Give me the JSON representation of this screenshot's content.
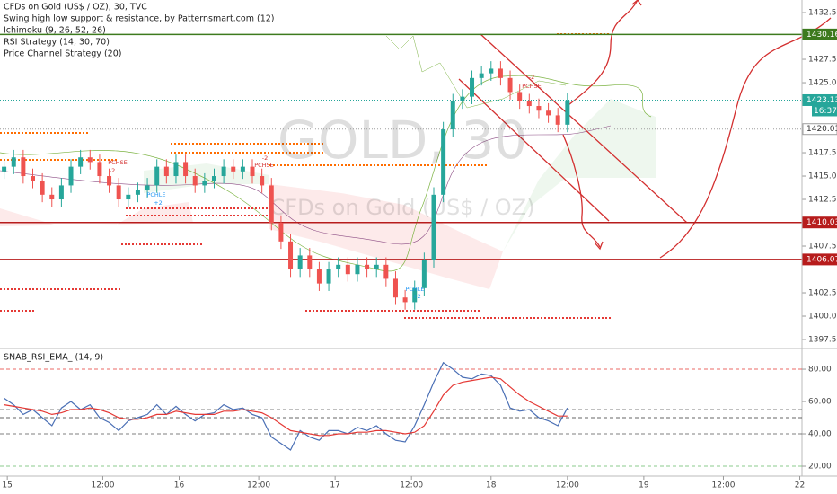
{
  "chart_data": [
    {
      "type": "candlestick",
      "title": "CFDs on Gold (US$ / OZ), 30, TVC",
      "indicators": [
        "Swing high low support & resistance, by Patternsmart.com (12)",
        "Ichimoku (9, 26, 52, 26)",
        "RSI Strategy (14, 30, 70)",
        "Price Channel Strategy (20)"
      ],
      "watermark": [
        "GOLD, 30",
        "CFDs on Gold (US$ / OZ)"
      ],
      "annotations": [
        "-2",
        "PCHSE",
        "PCHLE",
        "+2",
        "-2",
        "PCHSE",
        "PCHLE",
        "+2",
        "-2",
        "PCHSE"
      ],
      "up_color": "#26a69a",
      "down_color": "#ef5350",
      "x": [
        -1,
        2,
        5,
        8,
        11,
        14,
        17,
        20,
        23,
        26,
        29,
        32,
        35,
        38,
        41,
        44,
        47,
        50,
        53,
        56,
        59,
        62,
        65,
        68,
        71,
        74,
        77,
        80,
        83,
        86,
        89,
        92,
        95,
        98,
        101,
        104,
        107,
        110,
        113,
        116,
        119,
        122,
        125,
        128,
        131,
        134,
        137,
        140,
        143,
        146,
        149,
        152,
        155,
        158,
        161,
        164,
        167,
        170,
        173,
        176
      ],
      "open": [
        1415.5,
        1416,
        1417,
        1415,
        1414.5,
        1413,
        1412.5,
        1414,
        1416,
        1417,
        1416.5,
        1415,
        1414,
        1412.5,
        1413,
        1413.5,
        1414,
        1416,
        1415,
        1416.5,
        1415,
        1414,
        1414.5,
        1415,
        1416,
        1415.5,
        1416,
        1415,
        1414,
        1410,
        1408,
        1405,
        1406.5,
        1405,
        1403.5,
        1405,
        1405.5,
        1404.5,
        1405.5,
        1405,
        1405.5,
        1404,
        1402,
        1401.5,
        1403,
        1406,
        1413,
        1420,
        1423,
        1423.5,
        1425.5,
        1426,
        1426.5,
        1425.5,
        1424,
        1423,
        1422.5,
        1422,
        1421.5,
        1420.5
      ],
      "high": [
        1416.8,
        1417.8,
        1417.8,
        1415.8,
        1415.3,
        1413.8,
        1414.8,
        1416.8,
        1417.8,
        1417.8,
        1417.3,
        1415.8,
        1414.8,
        1413.8,
        1414.3,
        1414.8,
        1416.8,
        1416.8,
        1417.3,
        1417.3,
        1415.8,
        1415.3,
        1415.8,
        1416.8,
        1416.8,
        1416.8,
        1416.8,
        1415.8,
        1414.8,
        1410.8,
        1408.8,
        1407.3,
        1407.3,
        1405.8,
        1405.8,
        1406.3,
        1406.3,
        1406.3,
        1406.3,
        1406.3,
        1406.3,
        1404.8,
        1402.8,
        1403.8,
        1406.8,
        1413.8,
        1420.8,
        1423.8,
        1424.3,
        1426.3,
        1426.8,
        1427.3,
        1427.3,
        1426.3,
        1424.8,
        1423.8,
        1423.3,
        1422.8,
        1422.3,
        1423.9
      ],
      "low": [
        1414.7,
        1415.2,
        1414.2,
        1413.7,
        1412.2,
        1411.7,
        1411.7,
        1413.2,
        1415.2,
        1415.7,
        1414.2,
        1413.2,
        1411.7,
        1411.7,
        1412.2,
        1412.7,
        1413.2,
        1414.2,
        1414.2,
        1414.2,
        1413.2,
        1413.2,
        1413.7,
        1414.2,
        1414.7,
        1414.7,
        1414.2,
        1413.2,
        1409.2,
        1407.2,
        1404.2,
        1404.2,
        1404.2,
        1402.7,
        1402.7,
        1404.2,
        1403.7,
        1403.7,
        1404.2,
        1404.2,
        1403.2,
        1401.2,
        1400.7,
        1400.7,
        1402.2,
        1405.2,
        1412.2,
        1419.2,
        1422.2,
        1422.7,
        1424.7,
        1425.2,
        1424.7,
        1423.2,
        1422.2,
        1421.7,
        1421.2,
        1420.7,
        1419.7,
        1419.7
      ],
      "close": [
        1416,
        1417,
        1415,
        1414.5,
        1413,
        1412.5,
        1414,
        1416,
        1417,
        1416.5,
        1415,
        1414,
        1412.5,
        1413,
        1413.5,
        1414,
        1416,
        1415,
        1416.5,
        1415,
        1414,
        1414.5,
        1415,
        1416,
        1415.5,
        1416,
        1415,
        1414,
        1410,
        1408,
        1405,
        1406.5,
        1405,
        1403.5,
        1405,
        1405.5,
        1404.5,
        1405.5,
        1405,
        1405.5,
        1404,
        1402,
        1401.5,
        1403,
        1406,
        1413,
        1420,
        1423,
        1423.5,
        1425.5,
        1426,
        1426.5,
        1425.5,
        1424,
        1423,
        1422.5,
        1422,
        1421.5,
        1420.5,
        1423.1
      ],
      "xlim": [
        -2.3,
        249.7
      ],
      "ylim": [
        1396.54,
        1433.85
      ],
      "yticks": [
        {
          "value": 1432.5,
          "label": "1432.50"
        },
        {
          "value": 1427.5,
          "label": "1427.50"
        },
        {
          "value": 1425,
          "label": "1425.00"
        },
        {
          "value": 1417.5,
          "label": "1417.50"
        },
        {
          "value": 1415,
          "label": "1415.00"
        },
        {
          "value": 1412.5,
          "label": "1412.50"
        },
        {
          "value": 1407.5,
          "label": "1407.50"
        },
        {
          "value": 1402.5,
          "label": "1402.50"
        },
        {
          "value": 1400,
          "label": "1400.00"
        },
        {
          "value": 1397.5,
          "label": "1397.50"
        }
      ],
      "price_lines": [
        {
          "value": 1430.16,
          "color": "#3d7a1e",
          "style": "solid"
        },
        {
          "value": 1410.03,
          "color": "#b71c1c",
          "style": "solid"
        },
        {
          "value": 1406.07,
          "color": "#b71c1c",
          "style": "solid"
        },
        {
          "value": 1423.13,
          "color": "#26a69a",
          "style": "dotted"
        },
        {
          "value": 1420.03,
          "color": "#9e9e9e",
          "style": "dotted"
        }
      ],
      "countdown": "16:37"
    },
    {
      "type": "line",
      "title": "SNAB_RSI_EMA_ (14, 9)",
      "x": [
        -1,
        2,
        5,
        8,
        11,
        14,
        17,
        20,
        23,
        26,
        29,
        32,
        35,
        38,
        41,
        44,
        47,
        50,
        53,
        56,
        59,
        62,
        65,
        68,
        71,
        74,
        77,
        80,
        83,
        86,
        89,
        92,
        95,
        98,
        101,
        104,
        107,
        110,
        113,
        116,
        119,
        122,
        125,
        128,
        131,
        134,
        137,
        140,
        143,
        146,
        149,
        152,
        155,
        158,
        161,
        164,
        167,
        170,
        173,
        176
      ],
      "series": [
        {
          "color": "#4a6fb5",
          "values": [
            62,
            58,
            52,
            55,
            50,
            45,
            56,
            60,
            55,
            58,
            50,
            47,
            42,
            48,
            50,
            52,
            58,
            52,
            57,
            52,
            48,
            52,
            53,
            58,
            55,
            56,
            52,
            50,
            38,
            34,
            30,
            42,
            38,
            36,
            42,
            42,
            40,
            44,
            42,
            45,
            40,
            36,
            35,
            45,
            58,
            72,
            84,
            80,
            75,
            74,
            77,
            76,
            70,
            56,
            54,
            55,
            50,
            48,
            45,
            56
          ]
        },
        {
          "color": "#e53935",
          "values": [
            58,
            57,
            56,
            55,
            54,
            52,
            53,
            55,
            55,
            56,
            55,
            53,
            50,
            49,
            49,
            50,
            52,
            52,
            54,
            53,
            52,
            52,
            52,
            54,
            54,
            55,
            54,
            53,
            50,
            46,
            42,
            41,
            40,
            39,
            39,
            40,
            40,
            41,
            41,
            42,
            42,
            41,
            40,
            41,
            45,
            54,
            64,
            70,
            72,
            73,
            74,
            75,
            74,
            69,
            64,
            60,
            57,
            54,
            51,
            51
          ]
        }
      ],
      "levels": [
        {
          "value": 80,
          "color": "#e53935"
        },
        {
          "value": 55,
          "color": "#555"
        },
        {
          "value": 50,
          "color": "#333"
        },
        {
          "value": 40,
          "color": "#555"
        },
        {
          "value": 20,
          "color": "#66bb6a"
        }
      ],
      "xlim": [
        -2.3,
        249.7
      ],
      "ylim": [
        13.9,
        92.8
      ],
      "yticks": [
        {
          "value": 80,
          "label": "80.00"
        },
        {
          "value": 60,
          "label": "60.00"
        },
        {
          "value": 40,
          "label": "40.00"
        },
        {
          "value": 20,
          "label": "20.00"
        }
      ],
      "xticks": [
        {
          "value": 0,
          "label": "15"
        },
        {
          "value": 30,
          "label": "12:00"
        },
        {
          "value": 54,
          "label": "16"
        },
        {
          "value": 79,
          "label": "12:00"
        },
        {
          "value": 103,
          "label": "17"
        },
        {
          "value": 127,
          "label": "12:00"
        },
        {
          "value": 152,
          "label": "18"
        },
        {
          "value": 176,
          "label": "12:00"
        },
        {
          "value": 200,
          "label": "19"
        },
        {
          "value": 225,
          "label": "12:00"
        },
        {
          "value": 249,
          "label": "22"
        }
      ]
    }
  ]
}
